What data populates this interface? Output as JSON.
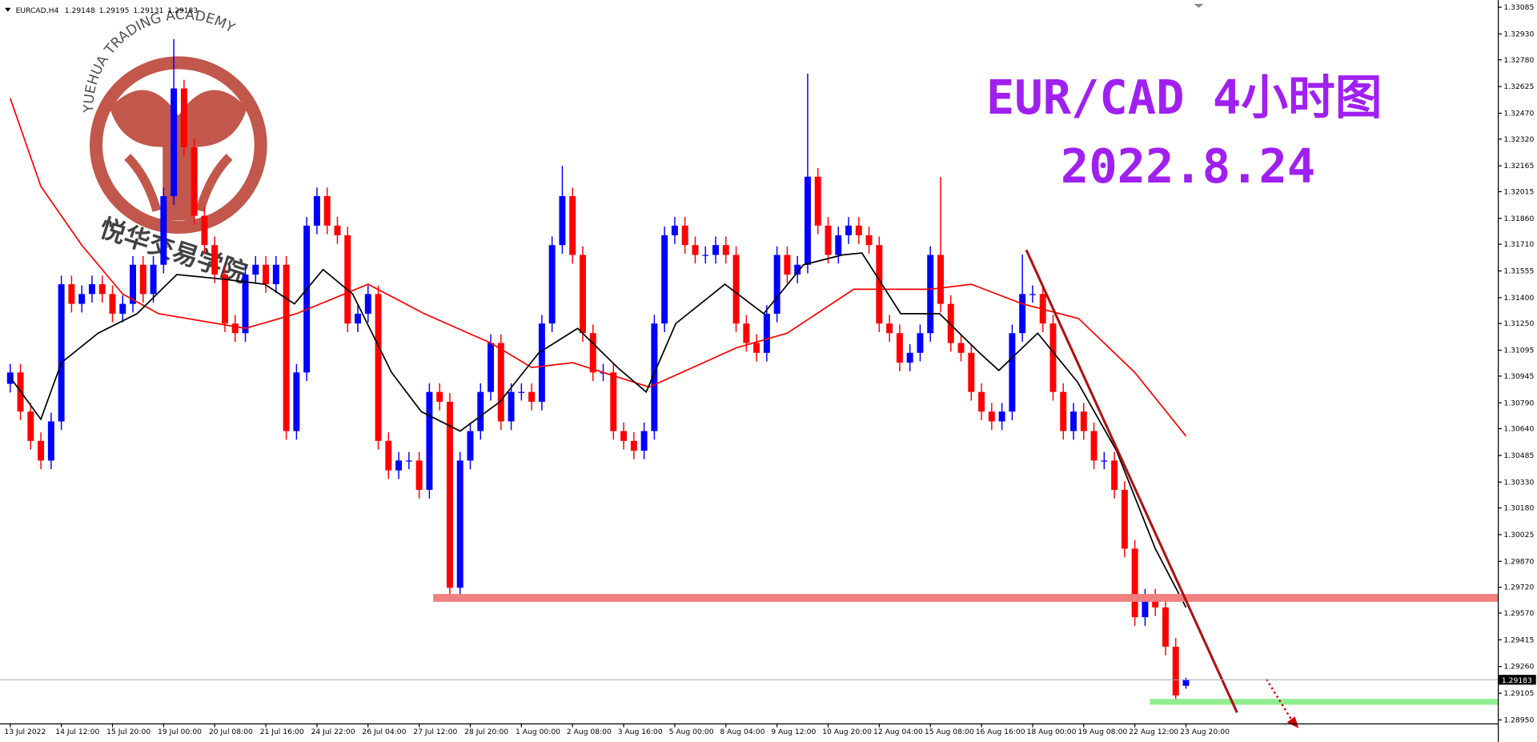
{
  "chart_data": {
    "type": "candlestick",
    "symbol": "EURCAD,H4",
    "title": "EUR/CAD 4小时图",
    "subtitle": "2022.8.24",
    "watermark_en": "YUEHUA TRADING ACADEMY",
    "watermark_cn": "悦华交易学院",
    "up_color": "#0000ff",
    "down_color": "#ff0000",
    "open": [
      1.309,
      1.30966,
      1.30739,
      1.30569,
      1.30455,
      1.30682,
      1.31478,
      1.31364,
      1.31421,
      1.31478,
      1.31421,
      1.31307,
      1.31364,
      1.31591,
      1.31421,
      1.31591,
      1.31989,
      1.32614,
      1.32273,
      1.31875,
      1.31705,
      1.31534,
      1.3125,
      1.31194,
      1.31534,
      1.31591,
      1.31478,
      1.31591,
      1.30626,
      1.30966,
      1.31818,
      1.31989,
      1.31818,
      1.31762,
      1.3125,
      1.31307,
      1.31421,
      1.30569,
      1.30398,
      1.30455,
      1.30455,
      1.30285,
      1.30853,
      1.30796,
      1.29717,
      1.30455,
      1.30626,
      1.30853,
      1.31137,
      1.30682,
      1.30853,
      1.30853,
      1.30796,
      1.3125,
      1.31705,
      1.31989,
      1.31648,
      1.31194,
      1.30966,
      1.30966,
      1.30626,
      1.30569,
      1.30512,
      1.30626,
      1.3125,
      1.31762,
      1.31818,
      1.31705,
      1.31648,
      1.31648,
      1.31705,
      1.31648,
      1.3125,
      1.31137,
      1.3108,
      1.31307,
      1.31648,
      1.31534,
      1.31591,
      1.32102,
      1.31818,
      1.31648,
      1.31762,
      1.31818,
      1.31762,
      1.31705,
      1.3125,
      1.31194,
      1.31023,
      1.3108,
      1.31194,
      1.31648,
      1.31364,
      1.31137,
      1.3108,
      1.30853,
      1.30739,
      1.30682,
      1.30739,
      1.31194,
      1.31421,
      1.31421,
      1.3125,
      1.30853,
      1.30626,
      1.30739,
      1.30626,
      1.30455,
      1.30455,
      1.30285,
      1.29944,
      1.29546,
      1.2966,
      1.29603,
      1.29375,
      1.29148
    ],
    "high": [
      1.31016,
      1.31016,
      1.30789,
      1.30619,
      1.30732,
      1.31528,
      1.31528,
      1.31471,
      1.31528,
      1.31528,
      1.31471,
      1.31414,
      1.31641,
      1.31641,
      1.31641,
      1.32039,
      1.329,
      1.32664,
      1.32323,
      1.31925,
      1.31755,
      1.31584,
      1.313,
      1.31584,
      1.31641,
      1.31641,
      1.31641,
      1.31641,
      1.31016,
      1.31868,
      1.32039,
      1.32039,
      1.31868,
      1.31812,
      1.31357,
      1.31471,
      1.31471,
      1.30619,
      1.30505,
      1.30505,
      1.30505,
      1.30903,
      1.30903,
      1.30846,
      1.30505,
      1.30676,
      1.30903,
      1.31187,
      1.31187,
      1.30903,
      1.30903,
      1.30903,
      1.313,
      1.31755,
      1.32165,
      1.32039,
      1.31698,
      1.31244,
      1.31016,
      1.31016,
      1.30676,
      1.30619,
      1.30676,
      1.313,
      1.31812,
      1.31868,
      1.31868,
      1.31755,
      1.31698,
      1.31755,
      1.31755,
      1.31698,
      1.313,
      1.31187,
      1.31357,
      1.31698,
      1.31698,
      1.31641,
      1.327,
      1.32152,
      1.31868,
      1.31812,
      1.31868,
      1.31868,
      1.31812,
      1.31755,
      1.313,
      1.31244,
      1.3113,
      1.31244,
      1.31698,
      1.321,
      1.31414,
      1.31187,
      1.3113,
      1.30903,
      1.30789,
      1.30789,
      1.31244,
      1.3165,
      1.31471,
      1.31471,
      1.313,
      1.30903,
      1.30789,
      1.30789,
      1.30676,
      1.30505,
      1.30505,
      1.30335,
      1.29994,
      1.2971,
      1.2971,
      1.29653,
      1.29425,
      1.29195
    ],
    "low": [
      1.3085,
      1.30689,
      1.30519,
      1.30405,
      1.30405,
      1.30632,
      1.31314,
      1.31314,
      1.31371,
      1.31371,
      1.31257,
      1.31257,
      1.31314,
      1.31371,
      1.31371,
      1.31541,
      1.31939,
      1.32223,
      1.31825,
      1.31655,
      1.31484,
      1.312,
      1.31144,
      1.31144,
      1.31484,
      1.31428,
      1.31428,
      1.30576,
      1.30576,
      1.30916,
      1.31768,
      1.31768,
      1.31712,
      1.312,
      1.312,
      1.31257,
      1.30519,
      1.30348,
      1.30348,
      1.30405,
      1.30235,
      1.30235,
      1.30746,
      1.29667,
      1.29667,
      1.30405,
      1.30576,
      1.30803,
      1.30632,
      1.30632,
      1.30803,
      1.30746,
      1.30746,
      1.312,
      1.31655,
      1.31598,
      1.31144,
      1.30916,
      1.30916,
      1.30576,
      1.30519,
      1.30462,
      1.30462,
      1.30576,
      1.312,
      1.31712,
      1.31655,
      1.31598,
      1.31598,
      1.31598,
      1.31598,
      1.312,
      1.31087,
      1.3103,
      1.3103,
      1.31257,
      1.31484,
      1.31484,
      1.31541,
      1.31768,
      1.31598,
      1.31598,
      1.31712,
      1.31712,
      1.31655,
      1.312,
      1.31144,
      1.30973,
      1.30973,
      1.3103,
      1.31144,
      1.31314,
      1.31087,
      1.3103,
      1.30803,
      1.30689,
      1.30632,
      1.30632,
      1.30689,
      1.31144,
      1.31371,
      1.312,
      1.30803,
      1.30576,
      1.30576,
      1.30576,
      1.30405,
      1.30405,
      1.30235,
      1.29894,
      1.29496,
      1.29496,
      1.29553,
      1.29325,
      1.29042,
      1.29131
    ],
    "close": [
      1.30966,
      1.30739,
      1.30569,
      1.30455,
      1.30682,
      1.31478,
      1.31364,
      1.31421,
      1.31478,
      1.31421,
      1.31307,
      1.31364,
      1.31591,
      1.31421,
      1.31591,
      1.31989,
      1.32614,
      1.32273,
      1.31875,
      1.31705,
      1.31534,
      1.3125,
      1.31194,
      1.31534,
      1.31591,
      1.31478,
      1.31591,
      1.30626,
      1.30966,
      1.31818,
      1.31989,
      1.31818,
      1.31762,
      1.3125,
      1.31307,
      1.31421,
      1.30569,
      1.30398,
      1.30455,
      1.30455,
      1.30285,
      1.30853,
      1.30796,
      1.29717,
      1.30455,
      1.30626,
      1.30853,
      1.31137,
      1.30682,
      1.30853,
      1.30853,
      1.30796,
      1.3125,
      1.31705,
      1.31989,
      1.31648,
      1.31194,
      1.30966,
      1.30966,
      1.30626,
      1.30569,
      1.30512,
      1.30626,
      1.3125,
      1.31762,
      1.31818,
      1.31705,
      1.31648,
      1.31648,
      1.31705,
      1.31648,
      1.3125,
      1.31137,
      1.3108,
      1.31307,
      1.31648,
      1.31534,
      1.31591,
      1.32102,
      1.31818,
      1.31648,
      1.31762,
      1.31818,
      1.31762,
      1.31705,
      1.3125,
      1.31194,
      1.31023,
      1.3108,
      1.31194,
      1.31648,
      1.31364,
      1.31137,
      1.3108,
      1.30853,
      1.30739,
      1.30682,
      1.30739,
      1.31194,
      1.31421,
      1.31421,
      1.3125,
      1.30853,
      1.30626,
      1.30739,
      1.30626,
      1.30455,
      1.30455,
      1.30285,
      1.29944,
      1.29546,
      1.2966,
      1.29603,
      1.29375,
      1.29092,
      1.29183
    ],
    "series": [
      {
        "color": "#ff0000",
        "x": [
          0,
          3,
          7,
          11,
          14.5,
          23,
          28,
          35,
          40.5,
          47,
          51,
          55,
          62.5,
          71,
          76,
          82.5,
          90,
          94,
          99,
          104.5,
          110,
          115
        ],
        "values": [
          1.32557,
          1.32046,
          1.31705,
          1.31421,
          1.31307,
          1.31222,
          1.31307,
          1.31478,
          1.31307,
          1.31137,
          1.30995,
          1.31023,
          1.30881,
          1.31108,
          1.31194,
          1.31449,
          1.31449,
          1.31478,
          1.31364,
          1.31279,
          1.30966,
          1.30597
        ]
      },
      {
        "color": "#000000",
        "x": [
          0,
          3,
          5,
          8.6,
          12.4,
          16.3,
          21,
          24.9,
          27.8,
          30.6,
          33.5,
          37.3,
          40.2,
          44,
          47.9,
          51.7,
          55.5,
          59.4,
          62.2,
          65.1,
          69.9,
          73.7,
          77.6,
          81.4,
          83.3,
          87.1,
          90.9,
          94.8,
          96.7,
          100.5,
          104.4,
          108.2,
          112,
          115
        ],
        "values": [
          1.30938,
          1.30694,
          1.31023,
          1.31194,
          1.31307,
          1.31534,
          1.31506,
          1.31478,
          1.31364,
          1.31563,
          1.31421,
          1.30966,
          1.30739,
          1.30626,
          1.30796,
          1.3108,
          1.31222,
          1.30995,
          1.30853,
          1.3125,
          1.31478,
          1.31307,
          1.31591,
          1.31648,
          1.31659,
          1.31307,
          1.31307,
          1.3108,
          1.30978,
          1.31194,
          1.3091,
          1.30512,
          1.29944,
          1.29603
        ]
      }
    ],
    "xlim": [
      -1,
      145.5
    ],
    "xticks": [
      {
        "value": 0,
        "label": "13 Jul 2022"
      },
      {
        "value": 5,
        "label": "14 Jul 12:00"
      },
      {
        "value": 10,
        "label": "15 Jul 20:00"
      },
      {
        "value": 15,
        "label": "19 Jul 00:00"
      },
      {
        "value": 20,
        "label": "20 Jul 08:00"
      },
      {
        "value": 25,
        "label": "21 Jul 16:00"
      },
      {
        "value": 30,
        "label": "24 Jul 22:00"
      },
      {
        "value": 35,
        "label": "26 Jul 04:00"
      },
      {
        "value": 40,
        "label": "27 Jul 12:00"
      },
      {
        "value": 45,
        "label": "28 Jul 20:00"
      },
      {
        "value": 50,
        "label": "1 Aug 00:00"
      },
      {
        "value": 55,
        "label": "2 Aug 08:00"
      },
      {
        "value": 60,
        "label": "3 Aug 16:00"
      },
      {
        "value": 65,
        "label": "5 Aug 00:00"
      },
      {
        "value": 70,
        "label": "8 Aug 04:00"
      },
      {
        "value": 75,
        "label": "9 Aug 12:00"
      },
      {
        "value": 80,
        "label": "10 Aug 20:00"
      },
      {
        "value": 85,
        "label": "12 Aug 04:00"
      },
      {
        "value": 90,
        "label": "15 Aug 08:00"
      },
      {
        "value": 95,
        "label": "16 Aug 16:00"
      },
      {
        "value": 100,
        "label": "18 Aug 00:00"
      },
      {
        "value": 105,
        "label": "19 Aug 08:00"
      },
      {
        "value": 110,
        "label": "22 Aug 12:00"
      },
      {
        "value": 115,
        "label": "23 Aug 20:00"
      }
    ],
    "ylim": [
      1.2893,
      1.3311
    ],
    "yticks": [
      1.33085,
      {
        "value": 1.3293,
        "label": "1.32930"
      },
      {
        "value": 1.3278,
        "label": "1.32780"
      },
      1.32625,
      {
        "value": 1.3247,
        "label": "1.32470"
      },
      {
        "value": 1.3232,
        "label": "1.32320"
      },
      1.32165,
      1.32015,
      {
        "value": 1.3186,
        "label": "1.31860"
      },
      {
        "value": 1.3171,
        "label": "1.31710"
      },
      1.31555,
      {
        "value": 1.314,
        "label": "1.31400"
      },
      {
        "value": 1.3125,
        "label": "1.31250"
      },
      1.31095,
      1.30945,
      {
        "value": 1.3079,
        "label": "1.30790"
      },
      {
        "value": 1.3064,
        "label": "1.30640"
      },
      1.30485,
      {
        "value": 1.3033,
        "label": "1.30330"
      },
      {
        "value": 1.3018,
        "label": "1.30180"
      },
      1.30025,
      {
        "value": 1.2987,
        "label": "1.29870"
      },
      {
        "value": 1.2972,
        "label": "1.29720"
      },
      {
        "value": 1.2957,
        "label": "1.29570"
      },
      1.29415,
      {
        "value": 1.2926,
        "label": "1.29260"
      },
      1.29105,
      {
        "value": 1.2895,
        "label": "1.28950"
      }
    ]
  }
}
